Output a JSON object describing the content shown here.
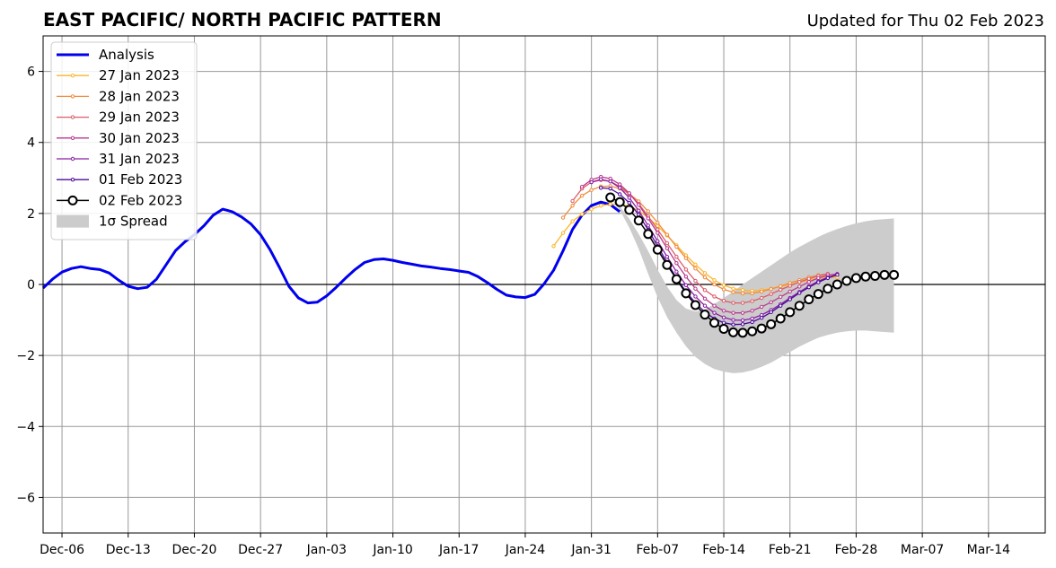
{
  "chart_data": {
    "type": "line",
    "title": "EAST PACIFIC/ NORTH PACIFIC PATTERN",
    "subtitle": "Updated for Thu 02 Feb 2023",
    "xlabel": "",
    "ylabel": "",
    "x_start": "2022-12-04",
    "x_end": "2023-03-20",
    "ylim": [
      -7,
      7
    ],
    "yticks": [
      -6,
      -4,
      -2,
      0,
      2,
      4,
      6
    ],
    "xticks": [
      {
        "date": "2022-12-06",
        "label": "Dec-06"
      },
      {
        "date": "2022-12-13",
        "label": "Dec-13"
      },
      {
        "date": "2022-12-20",
        "label": "Dec-20"
      },
      {
        "date": "2022-12-27",
        "label": "Dec-27"
      },
      {
        "date": "2023-01-03",
        "label": "Jan-03"
      },
      {
        "date": "2023-01-10",
        "label": "Jan-10"
      },
      {
        "date": "2023-01-17",
        "label": "Jan-17"
      },
      {
        "date": "2023-01-24",
        "label": "Jan-24"
      },
      {
        "date": "2023-01-31",
        "label": "Jan-31"
      },
      {
        "date": "2023-02-07",
        "label": "Feb-07"
      },
      {
        "date": "2023-02-14",
        "label": "Feb-14"
      },
      {
        "date": "2023-02-21",
        "label": "Feb-21"
      },
      {
        "date": "2023-02-28",
        "label": "Feb-28"
      },
      {
        "date": "2023-03-07",
        "label": "Mar-07"
      },
      {
        "date": "2023-03-14",
        "label": "Mar-14"
      }
    ],
    "grid": true,
    "legend_position": "top-left",
    "legend_labels": {
      "spread": "1σ Spread"
    },
    "analysis": {
      "name": "Analysis",
      "color": "#0000ee",
      "start": "2022-12-04",
      "values": [
        -0.1,
        0.15,
        0.35,
        0.45,
        0.5,
        0.45,
        0.42,
        0.32,
        0.12,
        -0.05,
        -0.12,
        -0.08,
        0.15,
        0.55,
        0.95,
        1.2,
        1.4,
        1.65,
        1.95,
        2.12,
        2.05,
        1.9,
        1.7,
        1.4,
        0.98,
        0.48,
        -0.05,
        -0.38,
        -0.52,
        -0.5,
        -0.32,
        -0.08,
        0.18,
        0.42,
        0.62,
        0.7,
        0.72,
        0.68,
        0.62,
        0.57,
        0.52,
        0.49,
        0.45,
        0.42,
        0.38,
        0.34,
        0.22,
        0.05,
        -0.14,
        -0.3,
        -0.35,
        -0.37,
        -0.28,
        0.02,
        0.4,
        0.95,
        1.55,
        1.95,
        2.22,
        2.32,
        2.25,
        2.05
      ]
    },
    "forecasts": [
      {
        "name": "27 Jan 2023",
        "color": "#fbb52b",
        "start": "2023-01-27",
        "values": [
          1.08,
          1.45,
          1.78,
          1.98,
          2.12,
          2.22,
          2.26,
          2.26,
          2.2,
          2.08,
          1.88,
          1.65,
          1.38,
          1.1,
          0.82,
          0.56,
          0.32,
          0.12,
          -0.02,
          -0.12,
          -0.16,
          -0.18,
          -0.16,
          -0.12,
          -0.06,
          0.0,
          0.06,
          0.12,
          0.17,
          0.2,
          0.2
        ]
      },
      {
        "name": "28 Jan 2023",
        "color": "#f08a3c",
        "start": "2023-01-28",
        "values": [
          1.88,
          2.22,
          2.5,
          2.66,
          2.76,
          2.77,
          2.7,
          2.55,
          2.34,
          2.06,
          1.74,
          1.4,
          1.06,
          0.74,
          0.45,
          0.2,
          0.0,
          -0.14,
          -0.22,
          -0.25,
          -0.25,
          -0.2,
          -0.13,
          -0.05,
          0.04,
          0.12,
          0.2,
          0.26,
          0.3
        ]
      },
      {
        "name": "29 Jan 2023",
        "color": "#dc5c6a",
        "start": "2023-01-29",
        "values": [
          2.35,
          2.7,
          2.88,
          2.94,
          2.9,
          2.76,
          2.55,
          2.27,
          1.92,
          1.55,
          1.16,
          0.78,
          0.42,
          0.1,
          -0.16,
          -0.34,
          -0.46,
          -0.52,
          -0.52,
          -0.47,
          -0.38,
          -0.27,
          -0.15,
          -0.04,
          0.07,
          0.16,
          0.24,
          0.3
        ]
      },
      {
        "name": "30 Jan 2023",
        "color": "#b83a8e",
        "start": "2023-01-30",
        "values": [
          2.75,
          2.95,
          3.03,
          2.98,
          2.82,
          2.57,
          2.24,
          1.86,
          1.45,
          1.02,
          0.6,
          0.22,
          -0.12,
          -0.4,
          -0.6,
          -0.74,
          -0.8,
          -0.8,
          -0.74,
          -0.63,
          -0.5,
          -0.35,
          -0.2,
          -0.06,
          0.07,
          0.18,
          0.26,
          0.3
        ]
      },
      {
        "name": "31 Jan 2023",
        "color": "#8b1fa6",
        "start": "2023-01-31",
        "values": [
          2.88,
          2.96,
          2.9,
          2.72,
          2.44,
          2.08,
          1.66,
          1.22,
          0.78,
          0.36,
          -0.02,
          -0.34,
          -0.6,
          -0.8,
          -0.93,
          -1.0,
          -1.01,
          -0.96,
          -0.86,
          -0.72,
          -0.56,
          -0.38,
          -0.21,
          -0.05,
          0.09,
          0.2,
          0.28
        ]
      },
      {
        "name": "01 Feb 2023",
        "color": "#4b0a9a",
        "start": "2023-02-01",
        "values": [
          2.72,
          2.7,
          2.54,
          2.3,
          1.96,
          1.54,
          1.08,
          0.62,
          0.18,
          -0.2,
          -0.52,
          -0.78,
          -0.96,
          -1.08,
          -1.13,
          -1.12,
          -1.06,
          -0.94,
          -0.78,
          -0.6,
          -0.42,
          -0.24,
          -0.08,
          0.06,
          0.18,
          0.27
        ]
      },
      {
        "name": "02 Feb 2023",
        "color": "#000000",
        "start": "2023-02-02",
        "values": [
          2.45,
          2.32,
          2.1,
          1.8,
          1.42,
          0.98,
          0.55,
          0.15,
          -0.25,
          -0.58,
          -0.85,
          -1.08,
          -1.25,
          -1.35,
          -1.36,
          -1.32,
          -1.24,
          -1.12,
          -0.96,
          -0.78,
          -0.6,
          -0.42,
          -0.27,
          -0.12,
          0.0,
          0.1,
          0.18,
          0.22,
          0.24,
          0.27,
          0.27
        ]
      }
    ],
    "spread": {
      "name": "1σ Spread",
      "color": "#cccccc",
      "start": "2023-02-02",
      "upper": [
        2.45,
        2.2,
        1.85,
        1.42,
        0.94,
        0.42,
        -0.06,
        -0.44,
        -0.68,
        -0.76,
        -0.7,
        -0.55,
        -0.38,
        -0.2,
        0.0,
        0.18,
        0.36,
        0.54,
        0.72,
        0.9,
        1.06,
        1.2,
        1.34,
        1.46,
        1.56,
        1.65,
        1.72,
        1.78,
        1.82,
        1.84,
        1.86
      ],
      "lower": [
        2.45,
        2.1,
        1.6,
        1.0,
        0.3,
        -0.36,
        -0.92,
        -1.36,
        -1.74,
        -2.04,
        -2.24,
        -2.38,
        -2.46,
        -2.5,
        -2.48,
        -2.42,
        -2.32,
        -2.2,
        -2.05,
        -1.9,
        -1.75,
        -1.62,
        -1.5,
        -1.42,
        -1.36,
        -1.32,
        -1.3,
        -1.3,
        -1.32,
        -1.34,
        -1.36
      ]
    }
  }
}
